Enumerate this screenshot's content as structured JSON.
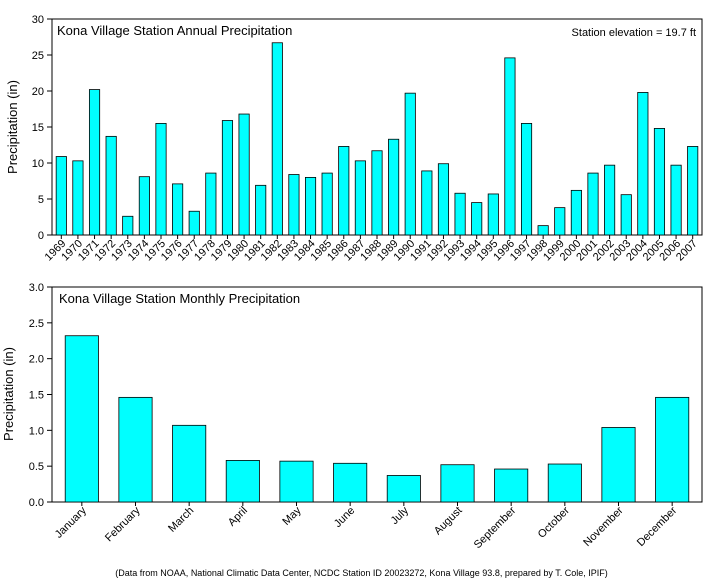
{
  "colors": {
    "bar_fill": "#00ffff",
    "bar_stroke": "#000000",
    "background": "#ffffff"
  },
  "chart_data": [
    {
      "type": "bar",
      "title": "Kona Village Station Annual Precipitation",
      "annotation": "Station elevation = 19.7 ft",
      "xlabel": "",
      "ylabel": "Precipitation (in)",
      "ylim": [
        0,
        30
      ],
      "yticks": [
        0,
        5,
        10,
        15,
        20,
        25,
        30
      ],
      "grid": false,
      "categories": [
        "1969",
        "1970",
        "1971",
        "1972",
        "1973",
        "1974",
        "1975",
        "1976",
        "1977",
        "1978",
        "1979",
        "1980",
        "1981",
        "1982",
        "1983",
        "1984",
        "1985",
        "1986",
        "1987",
        "1988",
        "1989",
        "1990",
        "1991",
        "1992",
        "1993",
        "1994",
        "1995",
        "1996",
        "1997",
        "1998",
        "1999",
        "2000",
        "2001",
        "2002",
        "2003",
        "2004",
        "2005",
        "2006",
        "2007"
      ],
      "values": [
        10.9,
        10.3,
        20.2,
        13.7,
        2.6,
        8.1,
        15.5,
        7.1,
        3.3,
        8.6,
        15.9,
        16.8,
        6.9,
        26.7,
        8.4,
        8.0,
        8.6,
        12.3,
        10.3,
        11.7,
        13.3,
        19.7,
        8.9,
        9.9,
        5.8,
        4.5,
        5.7,
        24.6,
        15.5,
        1.3,
        3.8,
        6.2,
        8.6,
        9.7,
        5.6,
        19.8,
        14.8,
        9.7,
        12.3
      ]
    },
    {
      "type": "bar",
      "title": "Kona Village Station Monthly Precipitation",
      "xlabel": "",
      "ylabel": "Precipitation (in)",
      "ylim": [
        0,
        3.0
      ],
      "yticks": [
        "0.0",
        "0.5",
        "1.0",
        "1.5",
        "2.0",
        "2.5",
        "3.0"
      ],
      "grid": false,
      "categories": [
        "January",
        "February",
        "March",
        "April",
        "May",
        "June",
        "July",
        "August",
        "September",
        "October",
        "November",
        "December"
      ],
      "values": [
        2.32,
        1.46,
        1.07,
        0.58,
        0.57,
        0.54,
        0.37,
        0.52,
        0.46,
        0.53,
        1.04,
        1.46
      ]
    }
  ],
  "footnote": "(Data from NOAA, National Climatic Data Center, NCDC Station ID 20023272, Kona Village 93.8, prepared by T. Cole, IPIF)"
}
